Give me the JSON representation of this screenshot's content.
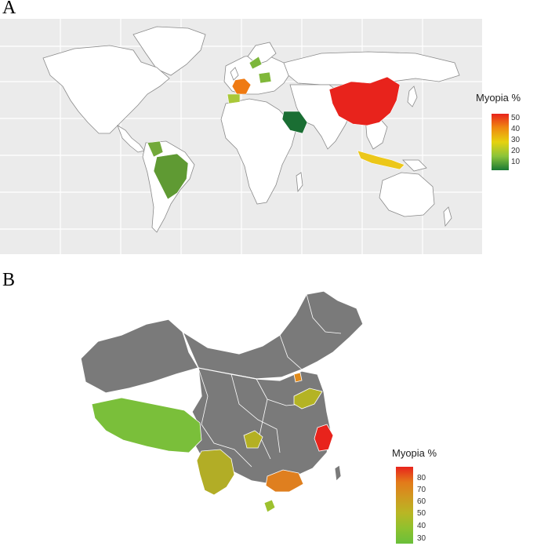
{
  "panels": {
    "a": {
      "letter": "A",
      "legend": {
        "title": "Myopia %",
        "ticks": [
          "50",
          "40",
          "30",
          "20",
          "10"
        ],
        "colors": [
          "#e8231c",
          "#ef8a10",
          "#e6d20f",
          "#8cc43a",
          "#1a7a34"
        ]
      },
      "regions": [
        {
          "name": "China",
          "color": "#e8231c"
        },
        {
          "name": "France",
          "color": "#ef7a12"
        },
        {
          "name": "Spain/Portugal",
          "color": "#a9c839"
        },
        {
          "name": "Poland",
          "color": "#80b83a"
        },
        {
          "name": "Finland",
          "color": "#7cb63b"
        },
        {
          "name": "Saudi Arabia",
          "color": "#1a6e33"
        },
        {
          "name": "Brazil",
          "color": "#5f9a33"
        },
        {
          "name": "Colombia",
          "color": "#72a93a"
        },
        {
          "name": "Indonesia",
          "color": "#ecc719"
        }
      ]
    },
    "b": {
      "letter": "B",
      "legend": {
        "title": "Myopia %",
        "ticks": [
          "80",
          "70",
          "60",
          "50",
          "40",
          "30"
        ],
        "colors": [
          "#e8231c",
          "#e37a1a",
          "#cf9a20",
          "#b9b624",
          "#8fc12e",
          "#69bf3a"
        ]
      },
      "regions": [
        {
          "name": "Tibet",
          "color": "#7abf3a"
        },
        {
          "name": "Yunnan",
          "color": "#b2ad26"
        },
        {
          "name": "Chongqing",
          "color": "#b4b024"
        },
        {
          "name": "Shandong",
          "color": "#b4b324"
        },
        {
          "name": "Zhejiang",
          "color": "#e8231c"
        },
        {
          "name": "Guangdong",
          "color": "#df7f1f"
        },
        {
          "name": "Hainan",
          "color": "#9dc12e"
        },
        {
          "name": "Tianjin",
          "color": "#e08a1a"
        }
      ]
    }
  }
}
